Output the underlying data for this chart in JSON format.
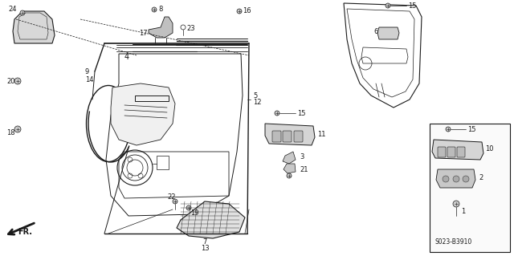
{
  "bg_color": "#ffffff",
  "line_color": "#1a1a1a",
  "diagram_code": "S023-B3910",
  "fig_width": 6.4,
  "fig_height": 3.19,
  "dpi": 100
}
